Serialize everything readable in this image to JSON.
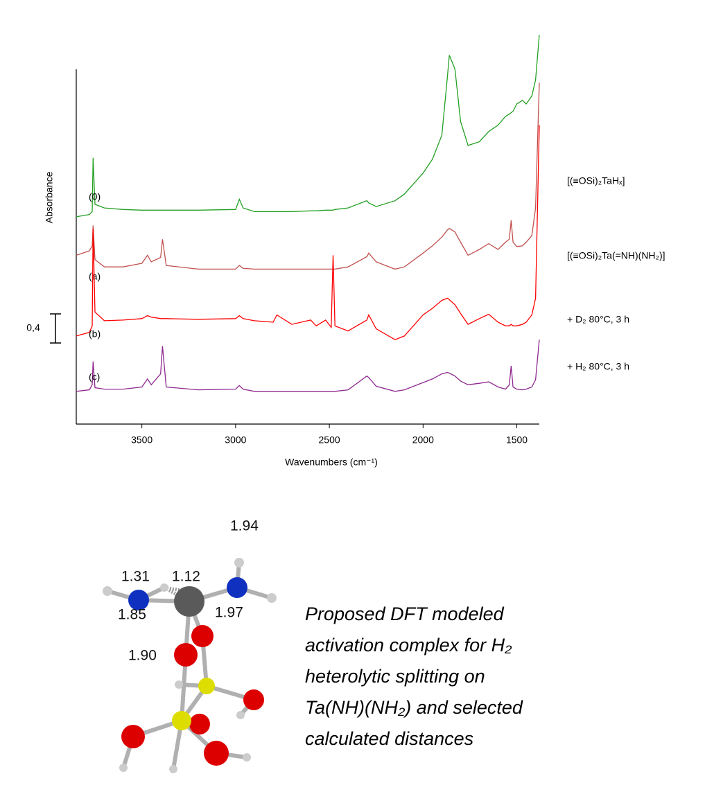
{
  "chart_data": {
    "type": "line",
    "ylabel": "Absorbance",
    "xlabel": "Wavenumbers (cm⁻¹)",
    "xlim": [
      3850,
      1380
    ],
    "xticks": [
      3500,
      3000,
      2500,
      2000,
      1500
    ],
    "ylim": [
      0,
      5.4
    ],
    "scale_bar": {
      "value": 0.4,
      "label": "0,4"
    },
    "x": [
      3850,
      3780,
      3765,
      3760,
      3750,
      3700,
      3600,
      3500,
      3470,
      3450,
      3400,
      3390,
      3370,
      3200,
      3000,
      2980,
      2960,
      2900,
      2800,
      2780,
      2700,
      2600,
      2570,
      2520,
      2490,
      2480,
      2470,
      2400,
      2300,
      2290,
      2250,
      2150,
      2100,
      2000,
      1950,
      1900,
      1870,
      1860,
      1830,
      1800,
      1760,
      1700,
      1650,
      1600,
      1560,
      1540,
      1530,
      1520,
      1500,
      1470,
      1450,
      1420,
      1400,
      1380
    ],
    "series": [
      {
        "name": "[(≡OSi)₂TaHₓ]",
        "label": "(0)",
        "color": "#22a022",
        "values": [
          2.85,
          2.88,
          2.92,
          3.66,
          3.02,
          2.97,
          2.95,
          2.94,
          2.94,
          2.94,
          2.94,
          2.94,
          2.94,
          2.94,
          2.95,
          3.09,
          2.97,
          2.92,
          2.92,
          2.92,
          2.92,
          2.93,
          2.93,
          2.94,
          2.94,
          2.94,
          2.95,
          2.97,
          3.07,
          3.04,
          2.99,
          3.07,
          3.16,
          3.45,
          3.64,
          3.97,
          4.78,
          5.07,
          4.88,
          4.16,
          3.83,
          3.88,
          4.02,
          4.11,
          4.23,
          4.26,
          4.28,
          4.3,
          4.4,
          4.45,
          4.4,
          4.51,
          4.73,
          5.35
        ]
      },
      {
        "name": "[(≡OSi)₂Ta(=NH)(NH₂)]",
        "label": "(a)",
        "color": "#c0504d",
        "values": [
          2.32,
          2.38,
          2.45,
          2.73,
          2.26,
          2.16,
          2.16,
          2.21,
          2.32,
          2.23,
          2.29,
          2.54,
          2.18,
          2.13,
          2.13,
          2.18,
          2.14,
          2.13,
          2.13,
          2.13,
          2.13,
          2.13,
          2.13,
          2.13,
          2.13,
          2.13,
          2.13,
          2.16,
          2.3,
          2.35,
          2.23,
          2.13,
          2.16,
          2.35,
          2.45,
          2.57,
          2.67,
          2.69,
          2.64,
          2.5,
          2.32,
          2.4,
          2.48,
          2.4,
          2.5,
          2.54,
          2.8,
          2.5,
          2.44,
          2.45,
          2.5,
          2.59,
          2.97,
          4.69
        ]
      },
      {
        "name": "+ D₂ 80°C, 3 h",
        "label": "(b)",
        "color": "#ff0000",
        "values": [
          1.21,
          1.26,
          1.35,
          2.69,
          1.54,
          1.42,
          1.43,
          1.45,
          1.49,
          1.47,
          1.45,
          1.45,
          1.45,
          1.44,
          1.45,
          1.49,
          1.45,
          1.42,
          1.4,
          1.5,
          1.37,
          1.43,
          1.35,
          1.43,
          1.33,
          2.32,
          1.35,
          1.28,
          1.43,
          1.5,
          1.31,
          1.16,
          1.21,
          1.5,
          1.59,
          1.7,
          1.73,
          1.71,
          1.64,
          1.52,
          1.37,
          1.45,
          1.51,
          1.4,
          1.35,
          1.35,
          1.37,
          1.35,
          1.35,
          1.37,
          1.4,
          1.5,
          1.73,
          4.11
        ]
      },
      {
        "name": "+ H₂ 80°C, 3 h",
        "label": "(c)",
        "color": "#8e278e",
        "values": [
          0.45,
          0.47,
          0.54,
          0.86,
          0.5,
          0.48,
          0.48,
          0.51,
          0.62,
          0.54,
          0.69,
          1.07,
          0.51,
          0.47,
          0.48,
          0.53,
          0.48,
          0.45,
          0.45,
          0.45,
          0.45,
          0.45,
          0.45,
          0.45,
          0.45,
          0.45,
          0.45,
          0.47,
          0.66,
          0.64,
          0.52,
          0.45,
          0.47,
          0.57,
          0.62,
          0.69,
          0.71,
          0.7,
          0.66,
          0.59,
          0.54,
          0.56,
          0.58,
          0.51,
          0.48,
          0.54,
          0.8,
          0.51,
          0.48,
          0.47,
          0.48,
          0.51,
          0.61,
          1.16
        ]
      }
    ]
  },
  "molecule": {
    "distances": [
      "1.94",
      "1.31",
      "1.12",
      "1.85",
      "1.97",
      "1.90"
    ],
    "caption": [
      "Proposed DFT modeled",
      "activation complex for  H₂",
      "heterolytic splitting on",
      "Ta(NH)(NH₂) and selected",
      "calculated distances"
    ]
  }
}
